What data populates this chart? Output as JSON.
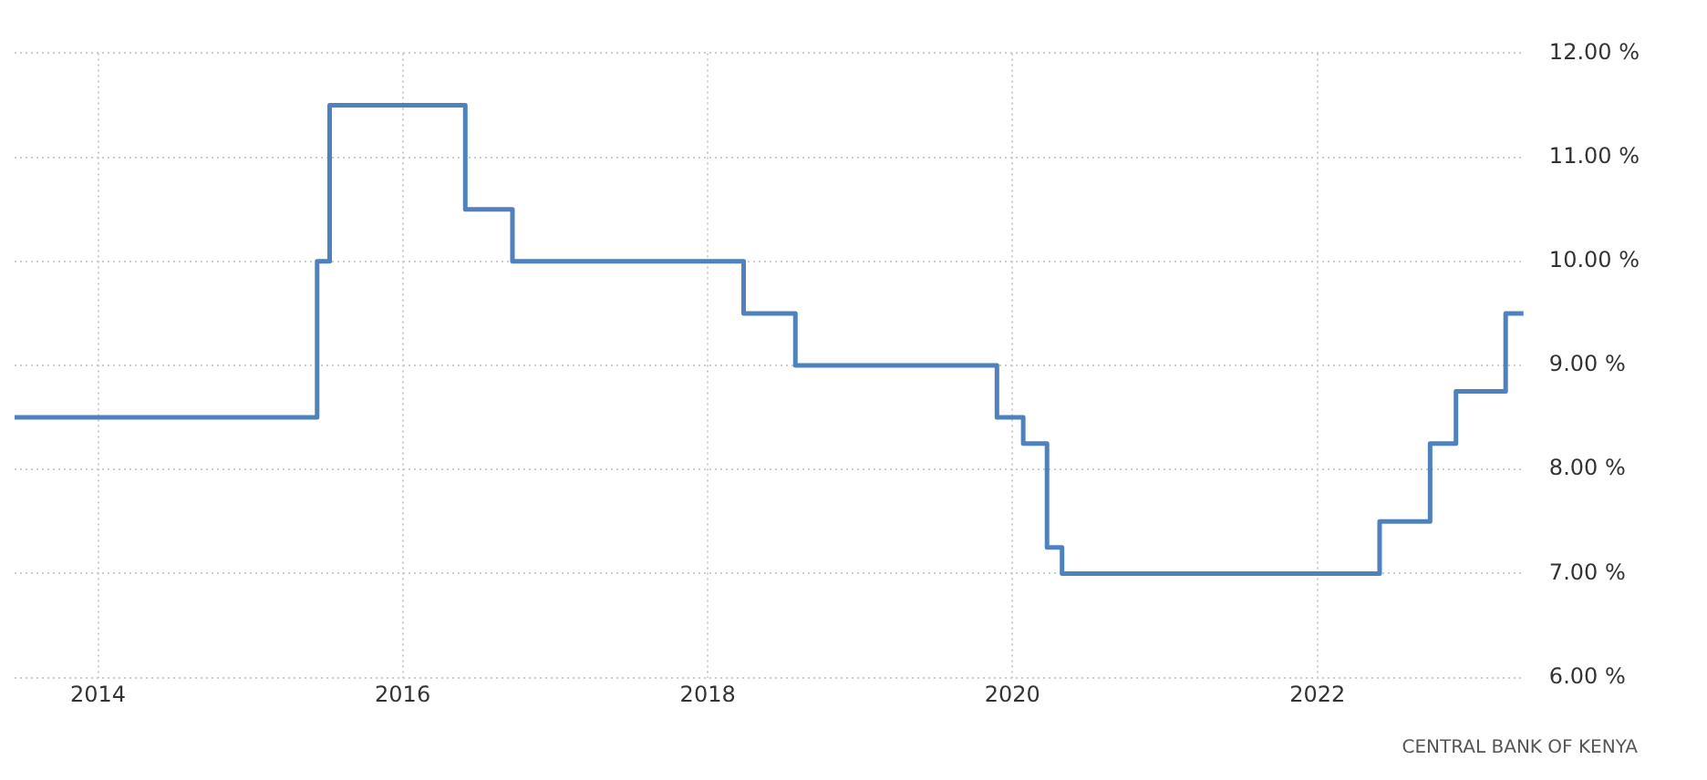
{
  "chart_data": {
    "type": "step",
    "x": [
      "2013-06-15",
      "2015-06-10",
      "2015-07-10",
      "2016-05-30",
      "2016-09-20",
      "2018-03-28",
      "2018-07-30",
      "2019-11-25",
      "2020-01-27",
      "2020-03-24",
      "2020-04-29",
      "2022-05-30",
      "2022-09-28",
      "2022-11-29",
      "2023-03-28",
      "2023-05-10"
    ],
    "series": [
      {
        "color": "#4f81bd",
        "values": [
          8.5,
          10,
          11.5,
          10.5,
          10,
          9.5,
          9,
          8.5,
          8.25,
          7.25,
          7,
          7.5,
          8.25,
          8.75,
          9.5,
          9.5
        ]
      }
    ],
    "xlim": [
      "2013-06-15",
      "2023-05-10"
    ],
    "xticks": [
      {
        "value": "2014",
        "label": "2014"
      },
      {
        "value": "2016",
        "label": "2016"
      },
      {
        "value": "2018",
        "label": "2018"
      },
      {
        "value": "2020",
        "label": "2020"
      },
      {
        "value": "2022",
        "label": "2022"
      }
    ],
    "ylim": [
      6,
      12
    ],
    "yticks": [
      {
        "value": 6,
        "label": "6.00 %"
      },
      {
        "value": 7,
        "label": "7.00 %"
      },
      {
        "value": 8,
        "label": "8.00 %"
      },
      {
        "value": 9,
        "label": "9.00 %"
      },
      {
        "value": 10,
        "label": "10.00 %"
      },
      {
        "value": 11,
        "label": "11.00 %"
      },
      {
        "value": 12,
        "label": "12.00 %"
      }
    ],
    "grid": true,
    "legend": false,
    "marker": "none",
    "line_style": "solid",
    "annotations": [
      "CENTRAL BANK OF KENYA"
    ]
  }
}
